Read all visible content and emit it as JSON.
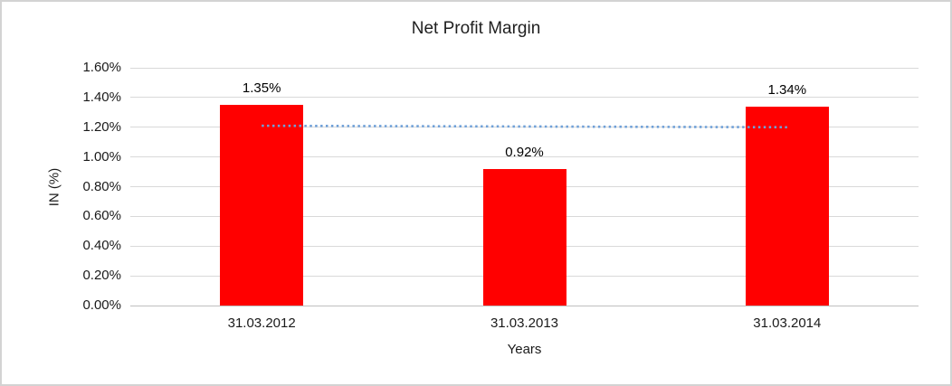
{
  "chart_data": {
    "type": "bar",
    "title": "Net Profit Margin",
    "xlabel": "Years",
    "ylabel": "IN (%)",
    "categories": [
      "31.03.2012",
      "31.03.2013",
      "31.03.2014"
    ],
    "values": [
      1.35,
      0.92,
      1.34
    ],
    "data_labels": [
      "1.35%",
      "0.92%",
      "1.34%"
    ],
    "ylim": [
      0,
      1.6
    ],
    "ytick_step": 0.2,
    "ytick_labels": [
      "0.00%",
      "0.20%",
      "0.40%",
      "0.60%",
      "0.80%",
      "1.00%",
      "1.20%",
      "1.40%",
      "1.60%"
    ],
    "grid": true,
    "legend": false,
    "bar_color": "#ff0000",
    "trendline": {
      "type": "linear",
      "style": "dotted",
      "color": "#6fa0d8",
      "start_value": 1.21,
      "end_value": 1.2,
      "spans": "center of first bar to center of last bar"
    },
    "colors": {
      "gridline": "#d9d9d9",
      "axis_line": "#bfbfbf",
      "text": "#1a1a1a",
      "chart_border": "#d3d3d3"
    }
  }
}
